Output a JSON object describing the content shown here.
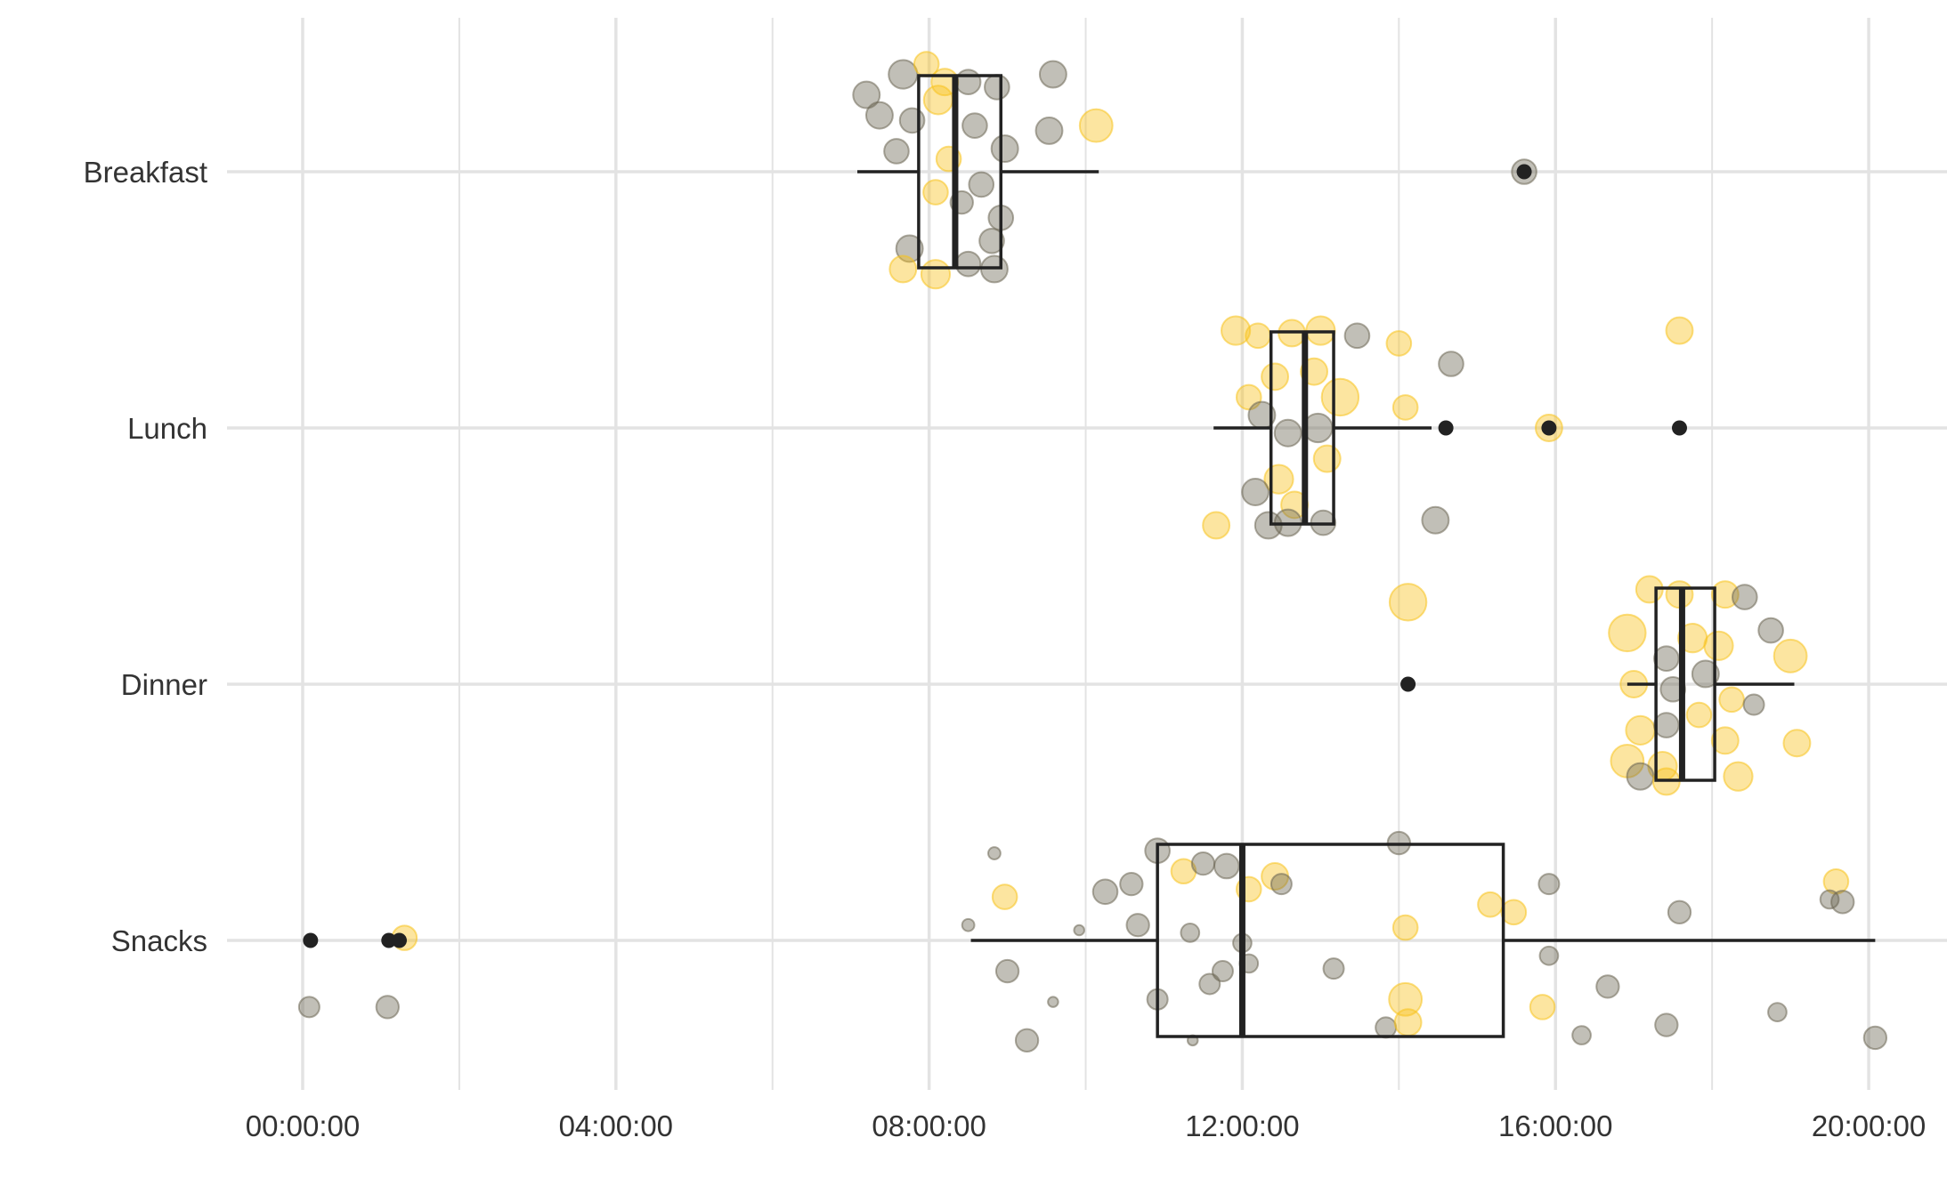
{
  "chart_data": {
    "type": "boxplot-jitter",
    "title": "",
    "xlabel": "",
    "ylabel": "",
    "xlim": [
      "-00:58:00",
      "21:00:00"
    ],
    "x_ticks": [
      "00:00:00",
      "04:00:00",
      "08:00:00",
      "12:00:00",
      "16:00:00",
      "20:00:00"
    ],
    "categories": [
      "Breakfast",
      "Lunch",
      "Dinner",
      "Snacks"
    ],
    "grid": true,
    "legend": "none",
    "colors": {
      "grey": "#6b6653",
      "yellow": "#f7c21c",
      "box": "#222222",
      "grid": "#e3e3e3"
    },
    "boxes": [
      {
        "category": "Breakfast",
        "whisker_low": "07:05:00",
        "q1": "07:52:00",
        "median": "08:20:00",
        "q3": "08:55:00",
        "whisker_high": "10:10:00",
        "outliers": [
          "15:36:00"
        ]
      },
      {
        "category": "Lunch",
        "whisker_low": "11:38:00",
        "q1": "12:22:00",
        "median": "12:48:00",
        "q3": "13:10:00",
        "whisker_high": "14:25:00",
        "outliers": [
          "14:36:00",
          "15:55:00",
          "17:35:00"
        ]
      },
      {
        "category": "Dinner",
        "whisker_low": "16:55:00",
        "q1": "17:17:00",
        "median": "17:37:00",
        "q3": "18:02:00",
        "whisker_high": "19:03:00",
        "outliers": [
          "14:07:00"
        ]
      },
      {
        "category": "Snacks",
        "whisker_low": "08:32:00",
        "q1": "10:55:00",
        "median": "12:00:00",
        "q3": "15:20:00",
        "whisker_high": "20:05:00",
        "outliers": [
          "00:06:00",
          "01:06:00",
          "01:14:00"
        ]
      }
    ],
    "points": [
      {
        "category": "Breakfast",
        "time": "07:40:00",
        "offset": 0.38,
        "size": 14,
        "color": "grey"
      },
      {
        "category": "Breakfast",
        "time": "07:58:00",
        "offset": 0.42,
        "size": 12,
        "color": "yellow"
      },
      {
        "category": "Breakfast",
        "time": "07:12:00",
        "offset": 0.3,
        "size": 13,
        "color": "grey"
      },
      {
        "category": "Breakfast",
        "time": "08:12:00",
        "offset": 0.35,
        "size": 13,
        "color": "yellow"
      },
      {
        "category": "Breakfast",
        "time": "08:30:00",
        "offset": 0.35,
        "size": 12,
        "color": "grey"
      },
      {
        "category": "Breakfast",
        "time": "08:52:00",
        "offset": 0.33,
        "size": 12,
        "color": "grey"
      },
      {
        "category": "Breakfast",
        "time": "09:35:00",
        "offset": 0.38,
        "size": 13,
        "color": "grey"
      },
      {
        "category": "Breakfast",
        "time": "10:08:00",
        "offset": 0.18,
        "size": 16,
        "color": "yellow"
      },
      {
        "category": "Breakfast",
        "time": "09:32:00",
        "offset": 0.16,
        "size": 13,
        "color": "grey"
      },
      {
        "category": "Breakfast",
        "time": "07:22:00",
        "offset": 0.22,
        "size": 13,
        "color": "grey"
      },
      {
        "category": "Breakfast",
        "time": "07:47:00",
        "offset": 0.2,
        "size": 12,
        "color": "grey"
      },
      {
        "category": "Breakfast",
        "time": "08:07:00",
        "offset": 0.28,
        "size": 14,
        "color": "yellow"
      },
      {
        "category": "Breakfast",
        "time": "08:35:00",
        "offset": 0.18,
        "size": 12,
        "color": "grey"
      },
      {
        "category": "Breakfast",
        "time": "08:58:00",
        "offset": 0.09,
        "size": 13,
        "color": "grey"
      },
      {
        "category": "Breakfast",
        "time": "07:35:00",
        "offset": 0.08,
        "size": 12,
        "color": "grey"
      },
      {
        "category": "Breakfast",
        "time": "08:15:00",
        "offset": 0.05,
        "size": 12,
        "color": "yellow"
      },
      {
        "category": "Breakfast",
        "time": "08:40:00",
        "offset": -0.05,
        "size": 12,
        "color": "grey"
      },
      {
        "category": "Breakfast",
        "time": "08:05:00",
        "offset": -0.08,
        "size": 12,
        "color": "yellow"
      },
      {
        "category": "Breakfast",
        "time": "08:25:00",
        "offset": -0.12,
        "size": 11,
        "color": "grey"
      },
      {
        "category": "Breakfast",
        "time": "08:55:00",
        "offset": -0.18,
        "size": 12,
        "color": "grey"
      },
      {
        "category": "Breakfast",
        "time": "07:45:00",
        "offset": -0.3,
        "size": 13,
        "color": "grey"
      },
      {
        "category": "Breakfast",
        "time": "07:40:00",
        "offset": -0.38,
        "size": 13,
        "color": "yellow"
      },
      {
        "category": "Breakfast",
        "time": "08:05:00",
        "offset": -0.4,
        "size": 14,
        "color": "yellow"
      },
      {
        "category": "Breakfast",
        "time": "08:30:00",
        "offset": -0.36,
        "size": 12,
        "color": "grey"
      },
      {
        "category": "Breakfast",
        "time": "08:50:00",
        "offset": -0.38,
        "size": 13,
        "color": "grey"
      },
      {
        "category": "Breakfast",
        "time": "08:48:00",
        "offset": -0.27,
        "size": 12,
        "color": "grey"
      },
      {
        "category": "Lunch",
        "time": "11:55:00",
        "offset": 0.38,
        "size": 14,
        "color": "yellow"
      },
      {
        "category": "Lunch",
        "time": "12:12:00",
        "offset": 0.36,
        "size": 12,
        "color": "yellow"
      },
      {
        "category": "Lunch",
        "time": "12:38:00",
        "offset": 0.37,
        "size": 13,
        "color": "yellow"
      },
      {
        "category": "Lunch",
        "time": "13:00:00",
        "offset": 0.38,
        "size": 14,
        "color": "yellow"
      },
      {
        "category": "Lunch",
        "time": "13:28:00",
        "offset": 0.36,
        "size": 12,
        "color": "grey"
      },
      {
        "category": "Lunch",
        "time": "14:00:00",
        "offset": 0.33,
        "size": 12,
        "color": "yellow"
      },
      {
        "category": "Lunch",
        "time": "14:40:00",
        "offset": 0.25,
        "size": 12,
        "color": "grey"
      },
      {
        "category": "Lunch",
        "time": "17:35:00",
        "offset": 0.38,
        "size": 13,
        "color": "yellow"
      },
      {
        "category": "Lunch",
        "time": "12:25:00",
        "offset": 0.2,
        "size": 13,
        "color": "yellow"
      },
      {
        "category": "Lunch",
        "time": "12:55:00",
        "offset": 0.22,
        "size": 13,
        "color": "yellow"
      },
      {
        "category": "Lunch",
        "time": "13:15:00",
        "offset": 0.12,
        "size": 18,
        "color": "yellow"
      },
      {
        "category": "Lunch",
        "time": "12:05:00",
        "offset": 0.12,
        "size": 12,
        "color": "yellow"
      },
      {
        "category": "Lunch",
        "time": "14:05:00",
        "offset": 0.08,
        "size": 12,
        "color": "yellow"
      },
      {
        "category": "Lunch",
        "time": "12:15:00",
        "offset": 0.05,
        "size": 13,
        "color": "grey"
      },
      {
        "category": "Lunch",
        "time": "12:35:00",
        "offset": -0.02,
        "size": 13,
        "color": "grey"
      },
      {
        "category": "Lunch",
        "time": "12:58:00",
        "offset": 0.0,
        "size": 14,
        "color": "grey"
      },
      {
        "category": "Lunch",
        "time": "13:05:00",
        "offset": -0.12,
        "size": 13,
        "color": "yellow"
      },
      {
        "category": "Lunch",
        "time": "12:28:00",
        "offset": -0.2,
        "size": 14,
        "color": "yellow"
      },
      {
        "category": "Lunch",
        "time": "12:10:00",
        "offset": -0.25,
        "size": 13,
        "color": "grey"
      },
      {
        "category": "Lunch",
        "time": "12:40:00",
        "offset": -0.3,
        "size": 13,
        "color": "yellow"
      },
      {
        "category": "Lunch",
        "time": "11:40:00",
        "offset": -0.38,
        "size": 13,
        "color": "yellow"
      },
      {
        "category": "Lunch",
        "time": "12:20:00",
        "offset": -0.38,
        "size": 13,
        "color": "grey"
      },
      {
        "category": "Lunch",
        "time": "12:35:00",
        "offset": -0.37,
        "size": 13,
        "color": "grey"
      },
      {
        "category": "Lunch",
        "time": "13:02:00",
        "offset": -0.37,
        "size": 12,
        "color": "grey"
      },
      {
        "category": "Lunch",
        "time": "14:28:00",
        "offset": -0.36,
        "size": 13,
        "color": "grey"
      },
      {
        "category": "Dinner",
        "time": "14:07:00",
        "offset": 0.32,
        "size": 18,
        "color": "yellow"
      },
      {
        "category": "Dinner",
        "time": "17:12:00",
        "offset": 0.37,
        "size": 13,
        "color": "yellow"
      },
      {
        "category": "Dinner",
        "time": "17:35:00",
        "offset": 0.35,
        "size": 13,
        "color": "yellow"
      },
      {
        "category": "Dinner",
        "time": "18:10:00",
        "offset": 0.35,
        "size": 13,
        "color": "yellow"
      },
      {
        "category": "Dinner",
        "time": "18:25:00",
        "offset": 0.34,
        "size": 12,
        "color": "grey"
      },
      {
        "category": "Dinner",
        "time": "16:55:00",
        "offset": 0.2,
        "size": 18,
        "color": "yellow"
      },
      {
        "category": "Dinner",
        "time": "17:45:00",
        "offset": 0.18,
        "size": 14,
        "color": "yellow"
      },
      {
        "category": "Dinner",
        "time": "18:45:00",
        "offset": 0.21,
        "size": 12,
        "color": "grey"
      },
      {
        "category": "Dinner",
        "time": "19:00:00",
        "offset": 0.11,
        "size": 16,
        "color": "yellow"
      },
      {
        "category": "Dinner",
        "time": "17:25:00",
        "offset": 0.1,
        "size": 12,
        "color": "grey"
      },
      {
        "category": "Dinner",
        "time": "18:05:00",
        "offset": 0.15,
        "size": 14,
        "color": "yellow"
      },
      {
        "category": "Dinner",
        "time": "17:00:00",
        "offset": 0.0,
        "size": 13,
        "color": "yellow"
      },
      {
        "category": "Dinner",
        "time": "17:30:00",
        "offset": -0.02,
        "size": 12,
        "color": "grey"
      },
      {
        "category": "Dinner",
        "time": "17:55:00",
        "offset": 0.04,
        "size": 13,
        "color": "grey"
      },
      {
        "category": "Dinner",
        "time": "18:15:00",
        "offset": -0.06,
        "size": 12,
        "color": "yellow"
      },
      {
        "category": "Dinner",
        "time": "18:32:00",
        "offset": -0.08,
        "size": 10,
        "color": "grey"
      },
      {
        "category": "Dinner",
        "time": "17:05:00",
        "offset": -0.18,
        "size": 14,
        "color": "yellow"
      },
      {
        "category": "Dinner",
        "time": "17:25:00",
        "offset": -0.16,
        "size": 12,
        "color": "grey"
      },
      {
        "category": "Dinner",
        "time": "17:50:00",
        "offset": -0.12,
        "size": 12,
        "color": "yellow"
      },
      {
        "category": "Dinner",
        "time": "18:10:00",
        "offset": -0.22,
        "size": 13,
        "color": "yellow"
      },
      {
        "category": "Dinner",
        "time": "19:05:00",
        "offset": -0.23,
        "size": 13,
        "color": "yellow"
      },
      {
        "category": "Dinner",
        "time": "16:55:00",
        "offset": -0.3,
        "size": 16,
        "color": "yellow"
      },
      {
        "category": "Dinner",
        "time": "17:22:00",
        "offset": -0.32,
        "size": 14,
        "color": "yellow"
      },
      {
        "category": "Dinner",
        "time": "17:05:00",
        "offset": -0.36,
        "size": 13,
        "color": "grey"
      },
      {
        "category": "Dinner",
        "time": "17:25:00",
        "offset": -0.38,
        "size": 13,
        "color": "yellow"
      },
      {
        "category": "Dinner",
        "time": "18:20:00",
        "offset": -0.36,
        "size": 14,
        "color": "yellow"
      },
      {
        "category": "Snacks",
        "time": "08:50:00",
        "offset": 0.34,
        "size": 6,
        "color": "grey"
      },
      {
        "category": "Snacks",
        "time": "08:58:00",
        "offset": 0.17,
        "size": 12,
        "color": "yellow"
      },
      {
        "category": "Snacks",
        "time": "08:30:00",
        "offset": 0.06,
        "size": 6,
        "color": "grey"
      },
      {
        "category": "Snacks",
        "time": "09:55:00",
        "offset": 0.04,
        "size": 5,
        "color": "grey"
      },
      {
        "category": "Snacks",
        "time": "10:15:00",
        "offset": 0.19,
        "size": 12,
        "color": "grey"
      },
      {
        "category": "Snacks",
        "time": "10:35:00",
        "offset": 0.22,
        "size": 11,
        "color": "grey"
      },
      {
        "category": "Snacks",
        "time": "10:55:00",
        "offset": 0.35,
        "size": 12,
        "color": "grey"
      },
      {
        "category": "Snacks",
        "time": "11:15:00",
        "offset": 0.27,
        "size": 12,
        "color": "yellow"
      },
      {
        "category": "Snacks",
        "time": "11:30:00",
        "offset": 0.3,
        "size": 11,
        "color": "grey"
      },
      {
        "category": "Snacks",
        "time": "11:48:00",
        "offset": 0.29,
        "size": 12,
        "color": "grey"
      },
      {
        "category": "Snacks",
        "time": "12:05:00",
        "offset": 0.2,
        "size": 12,
        "color": "yellow"
      },
      {
        "category": "Snacks",
        "time": "12:25:00",
        "offset": 0.25,
        "size": 13,
        "color": "yellow"
      },
      {
        "category": "Snacks",
        "time": "12:30:00",
        "offset": 0.22,
        "size": 10,
        "color": "grey"
      },
      {
        "category": "Snacks",
        "time": "14:00:00",
        "offset": 0.38,
        "size": 11,
        "color": "grey"
      },
      {
        "category": "Snacks",
        "time": "14:05:00",
        "offset": 0.05,
        "size": 12,
        "color": "yellow"
      },
      {
        "category": "Snacks",
        "time": "15:28:00",
        "offset": 0.11,
        "size": 12,
        "color": "yellow"
      },
      {
        "category": "Snacks",
        "time": "15:10:00",
        "offset": 0.14,
        "size": 12,
        "color": "yellow"
      },
      {
        "category": "Snacks",
        "time": "15:55:00",
        "offset": 0.22,
        "size": 10,
        "color": "grey"
      },
      {
        "category": "Snacks",
        "time": "17:35:00",
        "offset": 0.11,
        "size": 11,
        "color": "grey"
      },
      {
        "category": "Snacks",
        "time": "19:35:00",
        "offset": 0.23,
        "size": 12,
        "color": "yellow"
      },
      {
        "category": "Snacks",
        "time": "19:30:00",
        "offset": 0.16,
        "size": 9,
        "color": "grey"
      },
      {
        "category": "Snacks",
        "time": "19:40:00",
        "offset": 0.15,
        "size": 11,
        "color": "grey"
      },
      {
        "category": "Snacks",
        "time": "10:40:00",
        "offset": 0.06,
        "size": 11,
        "color": "grey"
      },
      {
        "category": "Snacks",
        "time": "11:20:00",
        "offset": 0.03,
        "size": 9,
        "color": "grey"
      },
      {
        "category": "Snacks",
        "time": "12:00:00",
        "offset": -0.01,
        "size": 9,
        "color": "grey"
      },
      {
        "category": "Snacks",
        "time": "12:05:00",
        "offset": -0.09,
        "size": 9,
        "color": "grey"
      },
      {
        "category": "Snacks",
        "time": "11:45:00",
        "offset": -0.12,
        "size": 10,
        "color": "grey"
      },
      {
        "category": "Snacks",
        "time": "11:35:00",
        "offset": -0.17,
        "size": 10,
        "color": "grey"
      },
      {
        "category": "Snacks",
        "time": "13:10:00",
        "offset": -0.11,
        "size": 10,
        "color": "grey"
      },
      {
        "category": "Snacks",
        "time": "15:55:00",
        "offset": -0.06,
        "size": 9,
        "color": "grey"
      },
      {
        "category": "Snacks",
        "time": "09:00:00",
        "offset": -0.12,
        "size": 11,
        "color": "grey"
      },
      {
        "category": "Snacks",
        "time": "09:35:00",
        "offset": -0.24,
        "size": 5,
        "color": "grey"
      },
      {
        "category": "Snacks",
        "time": "10:55:00",
        "offset": -0.23,
        "size": 10,
        "color": "grey"
      },
      {
        "category": "Snacks",
        "time": "11:22:00",
        "offset": -0.39,
        "size": 5,
        "color": "grey"
      },
      {
        "category": "Snacks",
        "time": "09:15:00",
        "offset": -0.39,
        "size": 11,
        "color": "grey"
      },
      {
        "category": "Snacks",
        "time": "13:50:00",
        "offset": -0.34,
        "size": 10,
        "color": "grey"
      },
      {
        "category": "Snacks",
        "time": "14:05:00",
        "offset": -0.23,
        "size": 16,
        "color": "yellow"
      },
      {
        "category": "Snacks",
        "time": "14:07:00",
        "offset": -0.32,
        "size": 13,
        "color": "yellow"
      },
      {
        "category": "Snacks",
        "time": "15:50:00",
        "offset": -0.26,
        "size": 12,
        "color": "yellow"
      },
      {
        "category": "Snacks",
        "time": "16:20:00",
        "offset": -0.37,
        "size": 9,
        "color": "grey"
      },
      {
        "category": "Snacks",
        "time": "16:40:00",
        "offset": -0.18,
        "size": 11,
        "color": "grey"
      },
      {
        "category": "Snacks",
        "time": "17:25:00",
        "offset": -0.33,
        "size": 11,
        "color": "grey"
      },
      {
        "category": "Snacks",
        "time": "18:50:00",
        "offset": -0.28,
        "size": 9,
        "color": "grey"
      },
      {
        "category": "Snacks",
        "time": "20:05:00",
        "offset": -0.38,
        "size": 11,
        "color": "grey"
      },
      {
        "category": "Snacks",
        "time": "00:05:00",
        "offset": -0.26,
        "size": 10,
        "color": "grey"
      },
      {
        "category": "Snacks",
        "time": "01:05:00",
        "offset": -0.26,
        "size": 11,
        "color": "grey"
      },
      {
        "category": "Snacks",
        "time": "01:18:00",
        "offset": 0.01,
        "size": 12,
        "color": "yellow"
      },
      {
        "category": "Breakfast",
        "time": "15:36:00",
        "offset": 0.0,
        "size": 12,
        "color": "grey"
      },
      {
        "category": "Lunch",
        "time": "15:55:00",
        "offset": 0.0,
        "size": 13,
        "color": "yellow"
      }
    ]
  }
}
